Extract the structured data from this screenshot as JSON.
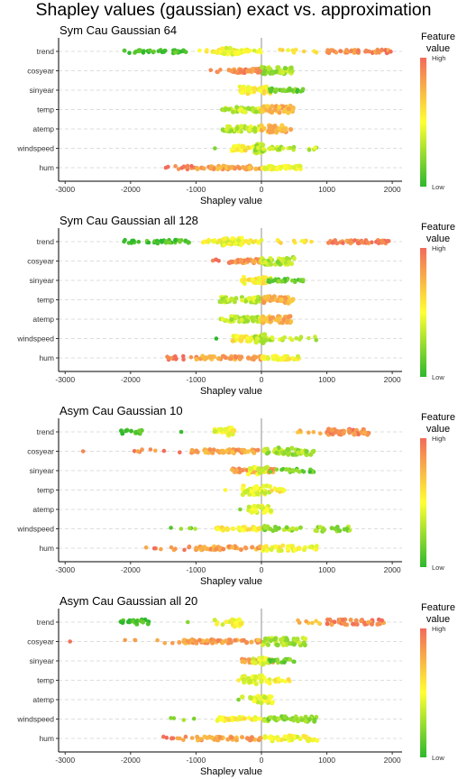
{
  "figure": {
    "title": "Shapley values (gaussian) exact vs. approximation"
  },
  "colors": {
    "low": "#2db82d",
    "mid": "#ffff33",
    "high": "#f26b5b",
    "gridline": "#dddddd",
    "zero_line": "#aaaaaa"
  },
  "chart_data": [
    {
      "type": "scatter",
      "title": "Sym Cau Gaussian 64",
      "xlabel": "Shapley value",
      "ylabel": "",
      "xlim": [
        -3100,
        2150
      ],
      "xticks": [
        -3000,
        -2000,
        -1000,
        0,
        1000,
        2000
      ],
      "categories": [
        "trend",
        "cosyear",
        "sinyear",
        "temp",
        "atemp",
        "windspeed",
        "hum"
      ],
      "legend": {
        "title_line1": "Feature",
        "title_line2": "value",
        "high": "High",
        "low": "Low",
        "position": "right"
      },
      "grid": "horizontal-dashed",
      "clusters": [
        {
          "feature": "trend",
          "start": -2100,
          "end": -1150,
          "count": 40,
          "hue": 0.05,
          "jitter": 2,
          "size": 2.3
        },
        {
          "feature": "trend",
          "start": -950,
          "end": 0,
          "count": 40,
          "hue": 0.5,
          "jitter": 2,
          "size": 2.3
        },
        {
          "feature": "trend",
          "start": -600,
          "end": -350,
          "count": 30,
          "hue": 0.45,
          "jitter": 4,
          "size": 2.6
        },
        {
          "feature": "trend",
          "start": 250,
          "end": 850,
          "count": 10,
          "hue": 0.55,
          "jitter": 2,
          "size": 2.3
        },
        {
          "feature": "trend",
          "start": 1000,
          "end": 2000,
          "count": 55,
          "hue": 0.9,
          "jitter": 2,
          "size": 2.3
        },
        {
          "feature": "cosyear",
          "start": -780,
          "end": -600,
          "count": 4,
          "hue": 0.95,
          "jitter": 2,
          "size": 2.3
        },
        {
          "feature": "cosyear",
          "start": -500,
          "end": 0,
          "count": 40,
          "hue": 0.85,
          "jitter": 2,
          "size": 2.6
        },
        {
          "feature": "cosyear",
          "start": 0,
          "end": 500,
          "count": 40,
          "hue": 0.3,
          "jitter": 4,
          "size": 2.6
        },
        {
          "feature": "sinyear",
          "start": -330,
          "end": 150,
          "count": 45,
          "hue": 0.55,
          "jitter": 4,
          "size": 2.4
        },
        {
          "feature": "sinyear",
          "start": 100,
          "end": 650,
          "count": 30,
          "hue": 0.15,
          "jitter": 2,
          "size": 2.3
        },
        {
          "feature": "temp",
          "start": -600,
          "end": 0,
          "count": 45,
          "hue": 0.35,
          "jitter": 3,
          "size": 2.5
        },
        {
          "feature": "temp",
          "start": 0,
          "end": 500,
          "count": 35,
          "hue": 0.75,
          "jitter": 4,
          "size": 2.6
        },
        {
          "feature": "atemp",
          "start": -600,
          "end": 0,
          "count": 45,
          "hue": 0.35,
          "jitter": 3,
          "size": 2.5
        },
        {
          "feature": "atemp",
          "start": 0,
          "end": 450,
          "count": 35,
          "hue": 0.75,
          "jitter": 4,
          "size": 2.6
        },
        {
          "feature": "windspeed",
          "start": -720,
          "end": -700,
          "count": 1,
          "hue": 0.1,
          "jitter": 0,
          "size": 2.3
        },
        {
          "feature": "windspeed",
          "start": -450,
          "end": 0,
          "count": 35,
          "hue": 0.55,
          "jitter": 3,
          "size": 2.6
        },
        {
          "feature": "windspeed",
          "start": -100,
          "end": 50,
          "count": 20,
          "hue": 0.3,
          "jitter": 5,
          "size": 2.8
        },
        {
          "feature": "windspeed",
          "start": 0,
          "end": 880,
          "count": 25,
          "hue": 0.35,
          "jitter": 2,
          "size": 2.3
        },
        {
          "feature": "hum",
          "start": -1480,
          "end": -1000,
          "count": 12,
          "hue": 0.95,
          "jitter": 2,
          "size": 2.3
        },
        {
          "feature": "hum",
          "start": -1000,
          "end": 0,
          "count": 45,
          "hue": 0.8,
          "jitter": 2,
          "size": 2.5
        },
        {
          "feature": "hum",
          "start": 0,
          "end": 600,
          "count": 40,
          "hue": 0.5,
          "jitter": 2,
          "size": 2.5
        }
      ]
    },
    {
      "type": "scatter",
      "title": "Sym Cau Gaussian all 128",
      "xlabel": "Shapley value",
      "ylabel": "",
      "xlim": [
        -3100,
        2150
      ],
      "xticks": [
        -3000,
        -2000,
        -1000,
        0,
        1000,
        2000
      ],
      "categories": [
        "trend",
        "cosyear",
        "sinyear",
        "temp",
        "atemp",
        "windspeed",
        "hum"
      ],
      "legend": {
        "title_line1": "Feature",
        "title_line2": "value",
        "high": "High",
        "low": "Low",
        "position": "right"
      },
      "grid": "horizontal-dashed",
      "clusters": [
        {
          "feature": "trend",
          "start": -2100,
          "end": -1100,
          "count": 40,
          "hue": 0.05,
          "jitter": 2,
          "size": 2.3
        },
        {
          "feature": "trend",
          "start": -950,
          "end": 0,
          "count": 40,
          "hue": 0.5,
          "jitter": 2,
          "size": 2.3
        },
        {
          "feature": "trend",
          "start": -600,
          "end": -300,
          "count": 30,
          "hue": 0.45,
          "jitter": 4,
          "size": 2.6
        },
        {
          "feature": "trend",
          "start": 200,
          "end": 800,
          "count": 10,
          "hue": 0.55,
          "jitter": 2,
          "size": 2.3
        },
        {
          "feature": "trend",
          "start": 1000,
          "end": 1950,
          "count": 55,
          "hue": 0.9,
          "jitter": 2,
          "size": 2.3
        },
        {
          "feature": "cosyear",
          "start": -750,
          "end": -600,
          "count": 4,
          "hue": 0.95,
          "jitter": 2,
          "size": 2.3
        },
        {
          "feature": "cosyear",
          "start": -500,
          "end": 0,
          "count": 40,
          "hue": 0.85,
          "jitter": 2,
          "size": 2.6
        },
        {
          "feature": "cosyear",
          "start": 0,
          "end": 500,
          "count": 40,
          "hue": 0.3,
          "jitter": 4,
          "size": 2.6
        },
        {
          "feature": "sinyear",
          "start": -300,
          "end": 150,
          "count": 45,
          "hue": 0.55,
          "jitter": 4,
          "size": 2.4
        },
        {
          "feature": "sinyear",
          "start": 100,
          "end": 650,
          "count": 30,
          "hue": 0.15,
          "jitter": 2,
          "size": 2.3
        },
        {
          "feature": "temp",
          "start": -650,
          "end": 0,
          "count": 45,
          "hue": 0.35,
          "jitter": 3,
          "size": 2.5
        },
        {
          "feature": "temp",
          "start": 0,
          "end": 500,
          "count": 35,
          "hue": 0.75,
          "jitter": 4,
          "size": 2.6
        },
        {
          "feature": "atemp",
          "start": -650,
          "end": 0,
          "count": 45,
          "hue": 0.35,
          "jitter": 3,
          "size": 2.5
        },
        {
          "feature": "atemp",
          "start": 0,
          "end": 450,
          "count": 35,
          "hue": 0.75,
          "jitter": 4,
          "size": 2.6
        },
        {
          "feature": "windspeed",
          "start": -700,
          "end": -680,
          "count": 1,
          "hue": 0.1,
          "jitter": 0,
          "size": 2.3
        },
        {
          "feature": "windspeed",
          "start": -450,
          "end": 0,
          "count": 35,
          "hue": 0.55,
          "jitter": 3,
          "size": 2.6
        },
        {
          "feature": "windspeed",
          "start": -100,
          "end": 50,
          "count": 20,
          "hue": 0.3,
          "jitter": 5,
          "size": 2.8
        },
        {
          "feature": "windspeed",
          "start": 0,
          "end": 880,
          "count": 25,
          "hue": 0.35,
          "jitter": 2,
          "size": 2.3
        },
        {
          "feature": "hum",
          "start": -1500,
          "end": -1000,
          "count": 12,
          "hue": 0.95,
          "jitter": 2,
          "size": 2.3
        },
        {
          "feature": "hum",
          "start": -1000,
          "end": 0,
          "count": 45,
          "hue": 0.8,
          "jitter": 2,
          "size": 2.5
        },
        {
          "feature": "hum",
          "start": 0,
          "end": 600,
          "count": 40,
          "hue": 0.5,
          "jitter": 2,
          "size": 2.5
        }
      ]
    },
    {
      "type": "scatter",
      "title": "Asym Cau Gaussian 10",
      "xlabel": "Shapley value",
      "ylabel": "",
      "xlim": [
        -3100,
        2150
      ],
      "xticks": [
        -3000,
        -2000,
        -1000,
        0,
        1000,
        2000
      ],
      "categories": [
        "trend",
        "cosyear",
        "sinyear",
        "temp",
        "atemp",
        "windspeed",
        "hum"
      ],
      "legend": {
        "title_line1": "Feature",
        "title_line2": "value",
        "high": "High",
        "low": "Low",
        "position": "right"
      },
      "grid": "horizontal-dashed",
      "clusters": [
        {
          "feature": "trend",
          "start": -2150,
          "end": -1800,
          "count": 14,
          "hue": 0.05,
          "jitter": 2,
          "size": 2.5
        },
        {
          "feature": "trend",
          "start": -1250,
          "end": -1200,
          "count": 1,
          "hue": 0.1,
          "jitter": 0,
          "size": 2.3
        },
        {
          "feature": "trend",
          "start": -750,
          "end": -600,
          "count": 10,
          "hue": 0.45,
          "jitter": 3,
          "size": 2.5
        },
        {
          "feature": "trend",
          "start": -550,
          "end": -420,
          "count": 20,
          "hue": 0.5,
          "jitter": 5,
          "size": 2.7
        },
        {
          "feature": "trend",
          "start": 500,
          "end": 900,
          "count": 6,
          "hue": 0.7,
          "jitter": 2,
          "size": 2.3
        },
        {
          "feature": "trend",
          "start": 1000,
          "end": 1650,
          "count": 40,
          "hue": 0.9,
          "jitter": 3,
          "size": 2.7
        },
        {
          "feature": "cosyear",
          "start": -2750,
          "end": -2700,
          "count": 1,
          "hue": 0.95,
          "jitter": 0,
          "size": 2.3
        },
        {
          "feature": "cosyear",
          "start": -2000,
          "end": -1100,
          "count": 8,
          "hue": 0.9,
          "jitter": 2,
          "size": 2.3
        },
        {
          "feature": "cosyear",
          "start": -1100,
          "end": 0,
          "count": 55,
          "hue": 0.8,
          "jitter": 2,
          "size": 2.5
        },
        {
          "feature": "cosyear",
          "start": 0,
          "end": 800,
          "count": 45,
          "hue": 0.3,
          "jitter": 4,
          "size": 2.6
        },
        {
          "feature": "sinyear",
          "start": -450,
          "end": 200,
          "count": 40,
          "hue": 0.85,
          "jitter": 2,
          "size": 2.5
        },
        {
          "feature": "sinyear",
          "start": -200,
          "end": 100,
          "count": 20,
          "hue": 0.4,
          "jitter": 4,
          "size": 2.6
        },
        {
          "feature": "sinyear",
          "start": 100,
          "end": 830,
          "count": 25,
          "hue": 0.15,
          "jitter": 2,
          "size": 2.3
        },
        {
          "feature": "temp",
          "start": -580,
          "end": -520,
          "count": 1,
          "hue": 0.55,
          "jitter": 0,
          "size": 2.3
        },
        {
          "feature": "temp",
          "start": -300,
          "end": 150,
          "count": 40,
          "hue": 0.45,
          "jitter": 5,
          "size": 2.6
        },
        {
          "feature": "temp",
          "start": 150,
          "end": 400,
          "count": 10,
          "hue": 0.55,
          "jitter": 2,
          "size": 2.3
        },
        {
          "feature": "atemp",
          "start": -350,
          "end": -300,
          "count": 1,
          "hue": 0.1,
          "jitter": 0,
          "size": 2.3
        },
        {
          "feature": "atemp",
          "start": -200,
          "end": 150,
          "count": 30,
          "hue": 0.45,
          "jitter": 4,
          "size": 2.6
        },
        {
          "feature": "windspeed",
          "start": -1450,
          "end": -1000,
          "count": 5,
          "hue": 0.2,
          "jitter": 2,
          "size": 2.3
        },
        {
          "feature": "windspeed",
          "start": -700,
          "end": 0,
          "count": 35,
          "hue": 0.55,
          "jitter": 2,
          "size": 2.5
        },
        {
          "feature": "windspeed",
          "start": 0,
          "end": 1350,
          "count": 40,
          "hue": 0.25,
          "jitter": 3,
          "size": 2.5
        },
        {
          "feature": "hum",
          "start": -1850,
          "end": -1050,
          "count": 10,
          "hue": 0.9,
          "jitter": 2,
          "size": 2.3
        },
        {
          "feature": "hum",
          "start": -1000,
          "end": 0,
          "count": 45,
          "hue": 0.8,
          "jitter": 2,
          "size": 2.5
        },
        {
          "feature": "hum",
          "start": 0,
          "end": 850,
          "count": 40,
          "hue": 0.5,
          "jitter": 3,
          "size": 2.5
        }
      ]
    },
    {
      "type": "scatter",
      "title": "Asym Cau Gaussian all 20",
      "xlabel": "Shapley value",
      "ylabel": "",
      "xlim": [
        -3100,
        2150
      ],
      "xticks": [
        -3000,
        -2000,
        -1000,
        0,
        1000,
        2000
      ],
      "categories": [
        "trend",
        "cosyear",
        "sinyear",
        "temp",
        "atemp",
        "windspeed",
        "hum"
      ],
      "legend": {
        "title_line1": "Feature",
        "title_line2": "value",
        "high": "High",
        "low": "Low",
        "position": "right"
      },
      "grid": "horizontal-dashed",
      "clusters": [
        {
          "feature": "trend",
          "start": -2150,
          "end": -1700,
          "count": 20,
          "hue": 0.05,
          "jitter": 3,
          "size": 2.5
        },
        {
          "feature": "trend",
          "start": -1150,
          "end": -1100,
          "count": 1,
          "hue": 0.1,
          "jitter": 0,
          "size": 2.3
        },
        {
          "feature": "trend",
          "start": -750,
          "end": -300,
          "count": 15,
          "hue": 0.45,
          "jitter": 3,
          "size": 2.5
        },
        {
          "feature": "trend",
          "start": -450,
          "end": -300,
          "count": 20,
          "hue": 0.5,
          "jitter": 5,
          "size": 2.7
        },
        {
          "feature": "trend",
          "start": 400,
          "end": 900,
          "count": 8,
          "hue": 0.7,
          "jitter": 2,
          "size": 2.3
        },
        {
          "feature": "trend",
          "start": 1000,
          "end": 1900,
          "count": 40,
          "hue": 0.9,
          "jitter": 3,
          "size": 2.5
        },
        {
          "feature": "cosyear",
          "start": -2950,
          "end": -2900,
          "count": 1,
          "hue": 0.95,
          "jitter": 0,
          "size": 2.3
        },
        {
          "feature": "cosyear",
          "start": -2150,
          "end": -1200,
          "count": 8,
          "hue": 0.9,
          "jitter": 2,
          "size": 2.3
        },
        {
          "feature": "cosyear",
          "start": -1200,
          "end": 0,
          "count": 55,
          "hue": 0.8,
          "jitter": 2,
          "size": 2.5
        },
        {
          "feature": "cosyear",
          "start": 0,
          "end": 700,
          "count": 45,
          "hue": 0.3,
          "jitter": 4,
          "size": 2.6
        },
        {
          "feature": "sinyear",
          "start": -300,
          "end": 200,
          "count": 35,
          "hue": 0.85,
          "jitter": 2,
          "size": 2.5
        },
        {
          "feature": "sinyear",
          "start": -150,
          "end": 100,
          "count": 20,
          "hue": 0.4,
          "jitter": 4,
          "size": 2.6
        },
        {
          "feature": "sinyear",
          "start": 100,
          "end": 560,
          "count": 20,
          "hue": 0.15,
          "jitter": 2,
          "size": 2.3
        },
        {
          "feature": "temp",
          "start": -380,
          "end": -320,
          "count": 1,
          "hue": 0.55,
          "jitter": 0,
          "size": 2.3
        },
        {
          "feature": "temp",
          "start": -300,
          "end": 150,
          "count": 40,
          "hue": 0.45,
          "jitter": 5,
          "size": 2.6
        },
        {
          "feature": "temp",
          "start": 150,
          "end": 450,
          "count": 12,
          "hue": 0.55,
          "jitter": 2,
          "size": 2.3
        },
        {
          "feature": "atemp",
          "start": -380,
          "end": -320,
          "count": 1,
          "hue": 0.1,
          "jitter": 0,
          "size": 2.3
        },
        {
          "feature": "atemp",
          "start": -300,
          "end": 200,
          "count": 30,
          "hue": 0.45,
          "jitter": 4,
          "size": 2.6
        },
        {
          "feature": "windspeed",
          "start": -1400,
          "end": -1000,
          "count": 4,
          "hue": 0.2,
          "jitter": 2,
          "size": 2.3
        },
        {
          "feature": "windspeed",
          "start": -700,
          "end": 0,
          "count": 35,
          "hue": 0.55,
          "jitter": 2,
          "size": 2.5
        },
        {
          "feature": "windspeed",
          "start": 0,
          "end": 850,
          "count": 40,
          "hue": 0.25,
          "jitter": 3,
          "size": 2.5
        },
        {
          "feature": "hum",
          "start": -1650,
          "end": -1050,
          "count": 10,
          "hue": 0.9,
          "jitter": 2,
          "size": 2.3
        },
        {
          "feature": "hum",
          "start": -1000,
          "end": 0,
          "count": 45,
          "hue": 0.8,
          "jitter": 2,
          "size": 2.5
        },
        {
          "feature": "hum",
          "start": 0,
          "end": 850,
          "count": 40,
          "hue": 0.5,
          "jitter": 3,
          "size": 2.5
        }
      ]
    }
  ]
}
